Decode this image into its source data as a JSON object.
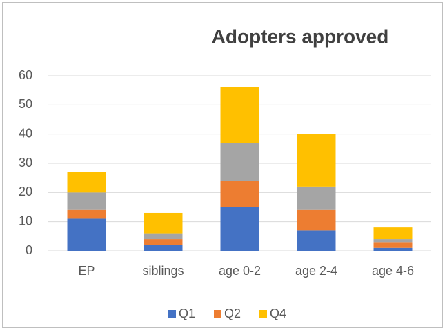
{
  "chart_data": {
    "type": "stacked_bar",
    "title": "Adopters approved",
    "categories": [
      "EP",
      "siblings",
      "age 0-2",
      "age 2-4",
      "age 4-6"
    ],
    "series": [
      {
        "name": "Q1",
        "color": "#4472c4",
        "values": [
          11,
          2,
          15,
          7,
          1
        ]
      },
      {
        "name": "Q2",
        "color": "#ed7d31",
        "values": [
          3,
          2,
          9,
          7,
          2
        ]
      },
      {
        "name": null,
        "color": "#a5a5a5",
        "values": [
          6,
          2,
          13,
          8,
          1
        ]
      },
      {
        "name": "Q4",
        "color": "#ffc000",
        "values": [
          7,
          7,
          19,
          18,
          4
        ]
      }
    ],
    "ylim": [
      0,
      60
    ],
    "yticks": [
      0,
      10,
      20,
      30,
      40,
      50,
      60
    ],
    "grid": true,
    "legend": "bottom"
  }
}
